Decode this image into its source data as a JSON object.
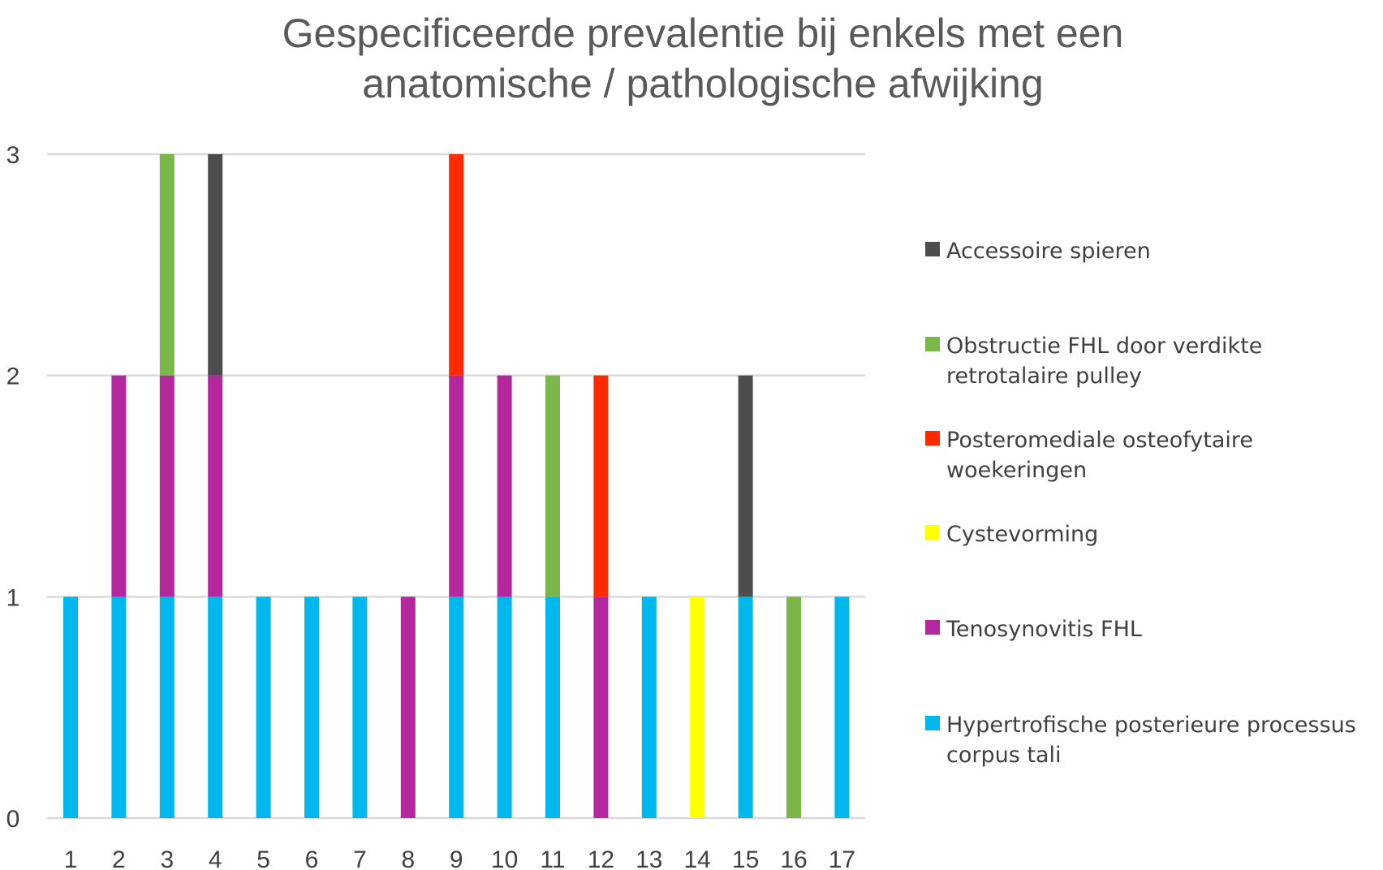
{
  "chart_data": {
    "type": "bar",
    "stacked": true,
    "title_lines": [
      "Gespecificeerde prevalentie bij enkels met een",
      "anatomische / pathologische afwijking"
    ],
    "xlabel": "",
    "ylabel": "",
    "ylim": [
      0,
      3
    ],
    "yticks": [
      0,
      1,
      2,
      3
    ],
    "grid": true,
    "legend_position": "right",
    "categories": [
      "1",
      "2",
      "3",
      "4",
      "5",
      "6",
      "7",
      "8",
      "9",
      "10",
      "11",
      "12",
      "13",
      "14",
      "15",
      "16",
      "17"
    ],
    "series": [
      {
        "name": "Hypertrofische posterieure processus corpus tali",
        "color": "#00B8EE",
        "values": [
          1,
          1,
          1,
          1,
          1,
          1,
          1,
          0,
          1,
          1,
          1,
          0,
          1,
          0,
          1,
          0,
          1
        ]
      },
      {
        "name": "Tenosynovitis FHL",
        "color": "#B5289D",
        "values": [
          0,
          1,
          1,
          1,
          0,
          0,
          0,
          1,
          1,
          1,
          0,
          1,
          0,
          0,
          0,
          0,
          0
        ]
      },
      {
        "name": "Cystevorming",
        "color": "#FFFF00",
        "values": [
          0,
          0,
          0,
          0,
          0,
          0,
          0,
          0,
          0,
          0,
          0,
          0,
          0,
          1,
          0,
          0,
          0
        ]
      },
      {
        "name": "Posteromediale osteofytaire woekeringen",
        "color": "#FF2A00",
        "values": [
          0,
          0,
          0,
          0,
          0,
          0,
          0,
          0,
          1,
          0,
          0,
          1,
          0,
          0,
          0,
          0,
          0
        ]
      },
      {
        "name": "Obstructie FHL door verdikte retrotalaire pulley",
        "color": "#7AB648",
        "values": [
          0,
          0,
          1,
          0,
          0,
          0,
          0,
          0,
          0,
          0,
          1,
          0,
          0,
          0,
          0,
          1,
          0
        ]
      },
      {
        "name": "Accessoire spieren",
        "color": "#4D4D4D",
        "values": [
          0,
          0,
          0,
          1,
          0,
          0,
          0,
          0,
          0,
          0,
          0,
          0,
          0,
          0,
          1,
          0,
          0
        ]
      }
    ],
    "legend": [
      {
        "color": "#4D4D4D",
        "lines": [
          "Accessoire spieren"
        ]
      },
      {
        "color": "#7AB648",
        "lines": [
          "Obstructie FHL door verdikte",
          "retrotalaire pulley"
        ]
      },
      {
        "color": "#FF2A00",
        "lines": [
          "Posteromediale osteofytaire",
          "woekeringen"
        ]
      },
      {
        "color": "#FFFF00",
        "lines": [
          "Cystevorming"
        ]
      },
      {
        "color": "#B5289D",
        "lines": [
          "Tenosynovitis FHL"
        ]
      },
      {
        "color": "#00B8EE",
        "lines": [
          "Hypertrofische posterieure processus",
          "corpus tali"
        ]
      }
    ]
  }
}
